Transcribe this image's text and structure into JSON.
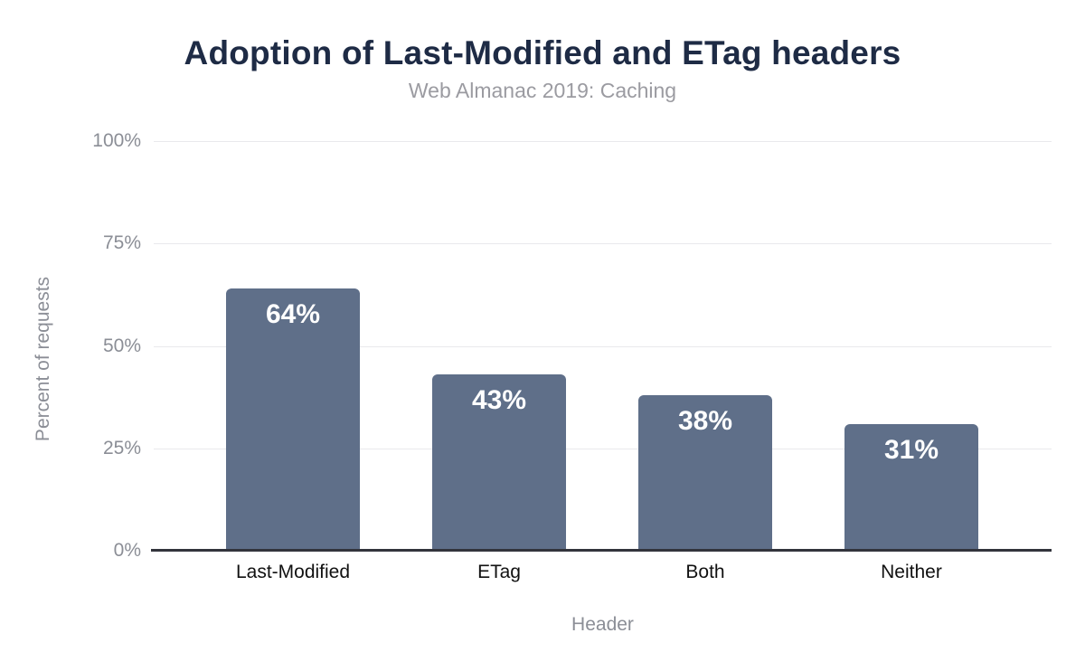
{
  "chart_data": {
    "type": "bar",
    "title": "Adoption of Last-Modified and ETag headers",
    "subtitle": "Web Almanac 2019: Caching",
    "categories": [
      "Last-Modified",
      "ETag",
      "Both",
      "Neither"
    ],
    "values": [
      64,
      43,
      38,
      31
    ],
    "data_labels": [
      "64%",
      "43%",
      "38%",
      "31%"
    ],
    "xlabel": "Header",
    "ylabel": "Percent of requests",
    "ylim": [
      0,
      100
    ],
    "yticks": [
      {
        "label": "0%",
        "value": 0
      },
      {
        "label": "25%",
        "value": 25
      },
      {
        "label": "50%",
        "value": 50
      },
      {
        "label": "75%",
        "value": 75
      },
      {
        "label": "100%",
        "value": 100
      }
    ],
    "grid": true,
    "legend_position": "none",
    "colors": {
      "bar": "#5f6f89",
      "bar_label": "#ffffff",
      "title": "#1e2b45",
      "subtitle": "#9b9ba1",
      "axis_text": "#8b8e96",
      "category_text": "#111111",
      "gridline": "#e9e9ec",
      "baseline": "#32343c",
      "background": "#ffffff"
    }
  }
}
